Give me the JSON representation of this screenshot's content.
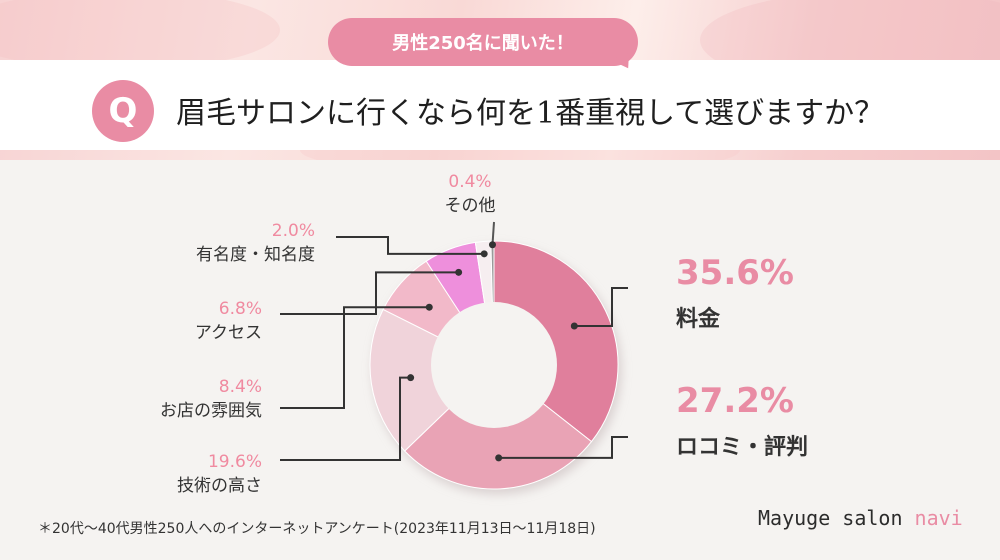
{
  "header": {
    "tag_label": "男性250名に聞いた！",
    "badge_letter": "Q",
    "question": "眉毛サロンに行くなら何を1番重視して選びますか？"
  },
  "footnote": "＊20代〜40代男性250人へのインターネットアンケート(2023年11月13日〜11月18日)",
  "brand": {
    "text": "Mayuge salon ",
    "accent": "navi"
  },
  "colors": {
    "accent": "#e98ca4",
    "label_pink": "#e98ca4",
    "pct_light": "#f08aa0"
  },
  "chart_data": {
    "type": "pie",
    "donut": true,
    "start": "top",
    "direction": "clockwise",
    "slices": [
      {
        "label": "料金",
        "value": 35.6,
        "display": "35.6%",
        "color": "#e07f9c"
      },
      {
        "label": "ロコミ・評判",
        "value": 27.2,
        "display": "27.2%",
        "color": "#e9a3b5"
      },
      {
        "label": "技術の高さ",
        "value": 19.6,
        "display": "19.6%",
        "color": "#f0d3da"
      },
      {
        "label": "お店の雰囲気",
        "value": 8.4,
        "display": "8.4%",
        "color": "#f2b9c9"
      },
      {
        "label": "アクセス",
        "value": 6.8,
        "display": "6.8%",
        "color": "#ee8fdc"
      },
      {
        "label": "有名度・知名度",
        "value": 2.0,
        "display": "2.0%",
        "color": "#f6eef0"
      },
      {
        "label": "その他",
        "value": 0.4,
        "display": "0.4%",
        "color": "#9a9a9a"
      }
    ]
  }
}
